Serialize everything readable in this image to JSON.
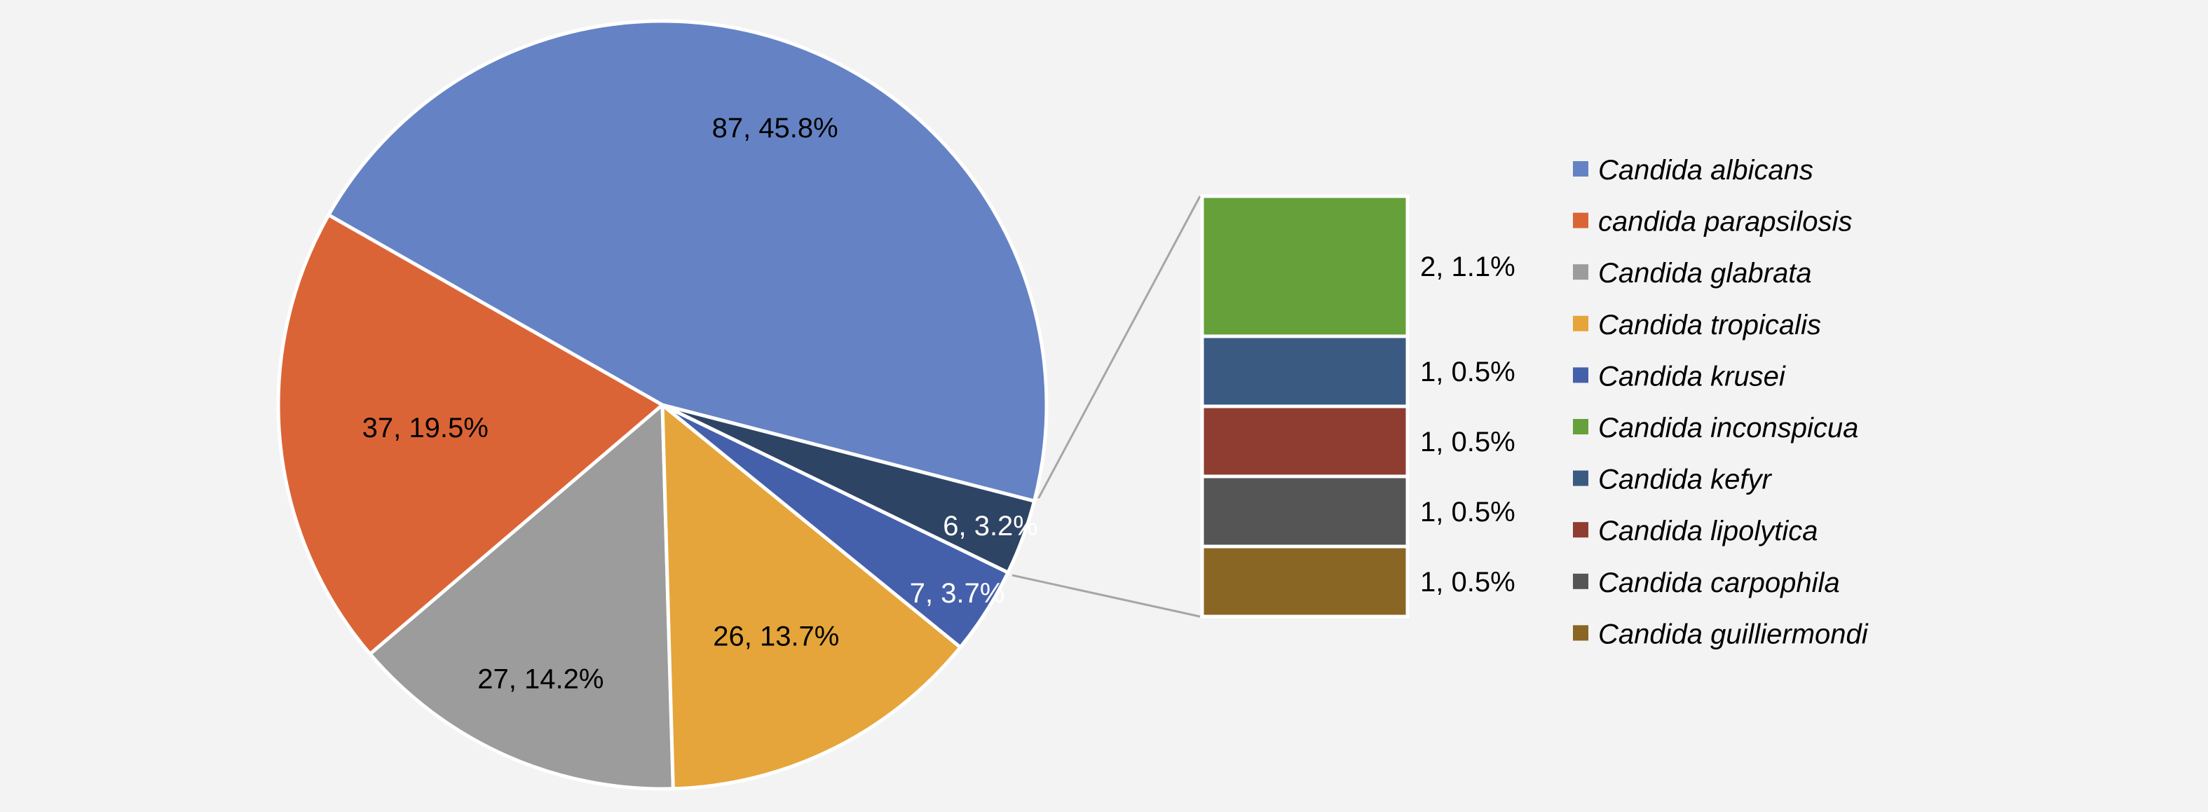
{
  "chart_data": {
    "type": "pie",
    "subtype": "bar-of-pie",
    "title": "",
    "legend_position": "right",
    "label_format": "value, percent",
    "slices": [
      {
        "name": "Candida albicans",
        "value": 87,
        "percent": "45.8%",
        "label": "87, 45.8%",
        "color": "#6583c4"
      },
      {
        "name": "candida parapsilosis",
        "value": 37,
        "percent": "19.5%",
        "label": "37, 19.5%",
        "color": "#db6437"
      },
      {
        "name": "Candida glabrata",
        "value": 27,
        "percent": "14.2%",
        "label": "27, 14.2%",
        "color": "#9c9c9c"
      },
      {
        "name": "Candida tropicalis",
        "value": 26,
        "percent": "13.7%",
        "label": "26, 13.7%",
        "color": "#e5a53a"
      },
      {
        "name": "Candida krusei",
        "value": 7,
        "percent": "3.7%",
        "label": "7, 3.7%",
        "color": "#4560aa"
      }
    ],
    "other": {
      "value": 6,
      "percent": "3.2%",
      "label": "6, 3.2%",
      "color": "#2e4465",
      "breakdown": [
        {
          "name": "Candida inconspicua",
          "value": 2,
          "percent": "1.1%",
          "label": "2, 1.1%",
          "color": "#65a03a"
        },
        {
          "name": "Candida kefyr",
          "value": 1,
          "percent": "0.5%",
          "label": "1, 0.5%",
          "color": "#3a5a82"
        },
        {
          "name": "Candida lipolytica",
          "value": 1,
          "percent": "0.5%",
          "label": "1, 0.5%",
          "color": "#8f3d30"
        },
        {
          "name": "Candida carpophila",
          "value": 1,
          "percent": "0.5%",
          "label": "1, 0.5%",
          "color": "#555555"
        },
        {
          "name": "Candida guilliermondi",
          "value": 1,
          "percent": "0.5%",
          "label": "1, 0.5%",
          "color": "#8a6624"
        }
      ]
    },
    "legend": [
      {
        "label": "Candida albicans",
        "color": "#6583c4"
      },
      {
        "label": "candida parapsilosis",
        "color": "#db6437"
      },
      {
        "label": "Candida glabrata",
        "color": "#9c9c9c"
      },
      {
        "label": "Candida tropicalis",
        "color": "#e5a53a"
      },
      {
        "label": "Candida krusei",
        "color": "#4560aa"
      },
      {
        "label": "Candida inconspicua",
        "color": "#65a03a"
      },
      {
        "label": "Candida kefyr",
        "color": "#3a5a82"
      },
      {
        "label": "Candida lipolytica",
        "color": "#8f3d30"
      },
      {
        "label": "Candida carpophila",
        "color": "#555555"
      },
      {
        "label": "Candida guilliermondi",
        "color": "#8a6624"
      }
    ]
  }
}
